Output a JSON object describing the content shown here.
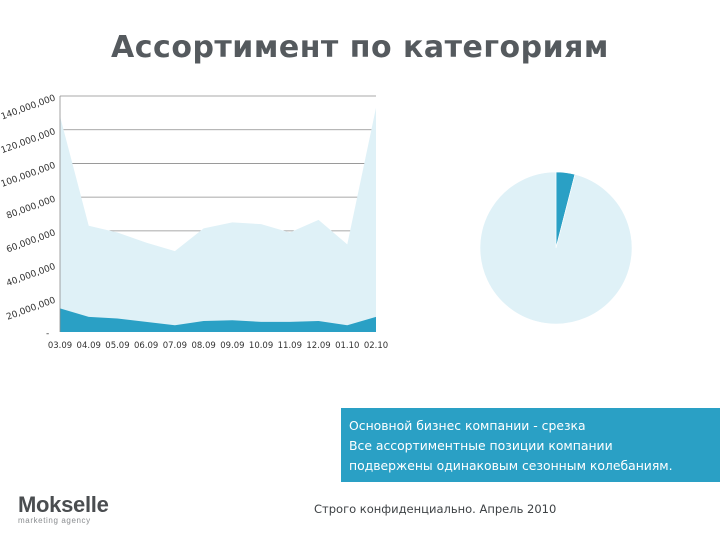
{
  "title": "Ассортимент по категориям",
  "info_lines": [
    "Основной бизнес компании - срезка",
    "Все ассортиментные позиции компании",
    "подвержены одинаковым сезонным колебаниям."
  ],
  "logo": {
    "name": "Mokselle",
    "tagline": "marketing agency"
  },
  "footer": "Строго конфиденциально. Апрель 2010",
  "colors": {
    "light_fill": "#dff1f7",
    "dark_fill": "#2aa0c5",
    "grid": "#8c8c8c",
    "axis_text": "#333333"
  },
  "chart_data": [
    {
      "type": "area",
      "stacked": true,
      "categories": [
        "03.09",
        "04.09",
        "05.09",
        "06.09",
        "07.09",
        "08.09",
        "09.09",
        "10.09",
        "11.09",
        "12.09",
        "01.10",
        "02.10"
      ],
      "series": [
        {
          "values": [
            14000000,
            9000000,
            8000000,
            6000000,
            4000000,
            6500000,
            7000000,
            6000000,
            6000000,
            6500000,
            4000000,
            9000000
          ]
        },
        {
          "values": [
            114000000,
            54000000,
            51000000,
            47000000,
            44000000,
            55000000,
            58000000,
            58000000,
            53000000,
            60000000,
            48000000,
            124000000
          ]
        }
      ],
      "y_ticks": [
        "-",
        "20,000,000",
        "40,000,000",
        "60,000,000",
        "80,000,000",
        "100,000,000",
        "120,000,000",
        "140,000,000"
      ],
      "ylim": [
        0,
        140000000
      ],
      "grid": true
    },
    {
      "type": "pie",
      "values": [
        4,
        96
      ]
    }
  ]
}
